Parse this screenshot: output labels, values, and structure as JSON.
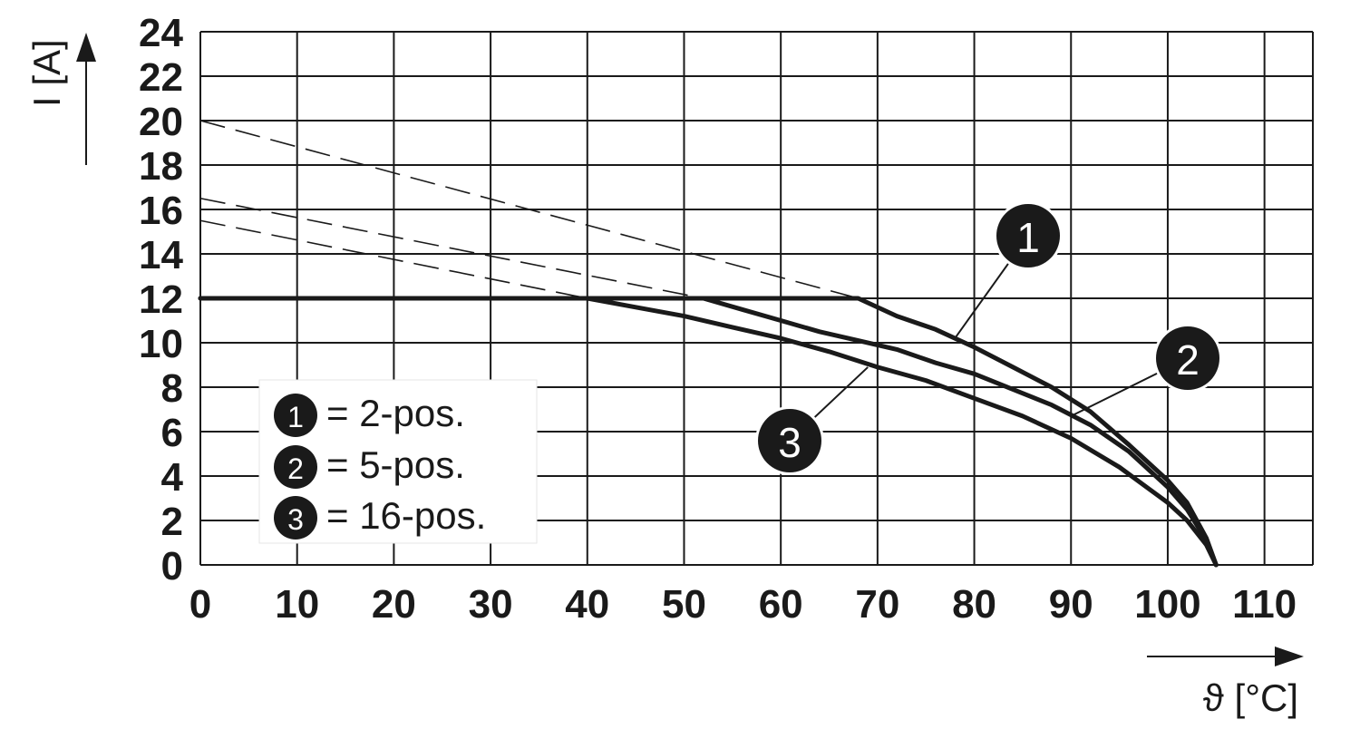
{
  "chart_data": {
    "type": "line",
    "title": "",
    "xlabel": "ϑ [°C]",
    "ylabel": "I [A]",
    "xlim": [
      0,
      115
    ],
    "ylim": [
      0,
      24
    ],
    "x_ticks": [
      "0",
      "10",
      "20",
      "30",
      "40",
      "50",
      "60",
      "70",
      "80",
      "90",
      "100",
      "110"
    ],
    "y_ticks": [
      "0",
      "2",
      "4",
      "6",
      "8",
      "10",
      "12",
      "14",
      "16",
      "18",
      "20",
      "22",
      "24"
    ],
    "grid": true,
    "legend_position": "bottom-left",
    "series": [
      {
        "name": "2-pos.",
        "marker": "1",
        "x": [
          0,
          68,
          72,
          76,
          80,
          84,
          88,
          92,
          96,
          100,
          102,
          104,
          105
        ],
        "y": [
          12,
          12,
          11.2,
          10.6,
          9.8,
          8.9,
          8.0,
          6.9,
          5.4,
          3.8,
          2.8,
          1.2,
          0
        ]
      },
      {
        "name": "5-pos.",
        "marker": "2",
        "x": [
          0,
          52,
          56,
          60,
          64,
          68,
          72,
          76,
          80,
          84,
          88,
          92,
          96,
          100,
          102,
          104,
          105
        ],
        "y": [
          12,
          12,
          11.5,
          11.0,
          10.5,
          10.1,
          9.7,
          9.1,
          8.6,
          7.9,
          7.2,
          6.3,
          5.1,
          3.5,
          2.5,
          1.1,
          0
        ]
      },
      {
        "name": "16-pos.",
        "marker": "3",
        "x": [
          0,
          40,
          45,
          50,
          55,
          60,
          65,
          70,
          75,
          80,
          85,
          90,
          95,
          100,
          102,
          104,
          105
        ],
        "y": [
          12,
          12,
          11.6,
          11.2,
          10.7,
          10.2,
          9.6,
          8.9,
          8.3,
          7.5,
          6.7,
          5.7,
          4.4,
          2.8,
          2.0,
          0.9,
          0
        ]
      }
    ],
    "extrapolations": [
      {
        "series": "2-pos.",
        "x": [
          0,
          68
        ],
        "y": [
          20,
          12
        ]
      },
      {
        "series": "5-pos.",
        "x": [
          0,
          52
        ],
        "y": [
          16.5,
          12
        ]
      },
      {
        "series": "16-pos.",
        "x": [
          0,
          40
        ],
        "y": [
          15.5,
          12
        ]
      }
    ],
    "legend": [
      {
        "marker": "1",
        "label": "= 2-pos."
      },
      {
        "marker": "2",
        "label": "= 5-pos."
      },
      {
        "marker": "3",
        "label": "= 16-pos."
      }
    ],
    "annotations": [
      {
        "marker": "1",
        "target_series": "2-pos.",
        "x": 78,
        "y": 10.2
      },
      {
        "marker": "2",
        "target_series": "5-pos.",
        "x": 90,
        "y": 6.7
      },
      {
        "marker": "3",
        "target_series": "16-pos.",
        "x": 69,
        "y": 8.9
      }
    ]
  }
}
